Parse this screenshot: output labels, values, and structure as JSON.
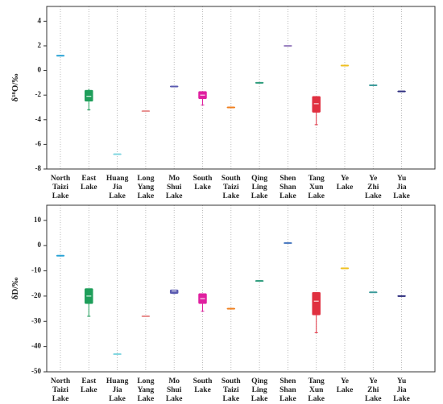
{
  "chart_data": [
    {
      "type": "box",
      "ylabel": "δ¹⁸O/‰",
      "ylim": [
        -8,
        5.2
      ],
      "yticks": [
        -8,
        -6,
        -4,
        -2,
        0,
        2,
        4
      ],
      "grid": true,
      "categories": [
        [
          "North",
          "Taizi",
          "Lake"
        ],
        [
          "East",
          "Lake"
        ],
        [
          "Huang",
          "Jia",
          "Lake"
        ],
        [
          "Long",
          "Yang",
          "Lake"
        ],
        [
          "Mo",
          "Shui",
          "Lake"
        ],
        [
          "South",
          "Lake"
        ],
        [
          "South",
          "Taizi",
          "Lake"
        ],
        [
          "Qing",
          "Ling",
          "Lake"
        ],
        [
          "Shen",
          "Shan",
          "Lake"
        ],
        [
          "Tang",
          "Xun",
          "Lake"
        ],
        [
          "Ye",
          "Lake"
        ],
        [
          "Ye",
          "Zhi",
          "Lake"
        ],
        [
          "Yu",
          "Jia",
          "Lake"
        ]
      ],
      "colors": [
        "#29a3d6",
        "#1e9e5a",
        "#7fd6e0",
        "#e88f8f",
        "#5a5ab0",
        "#e020a0",
        "#f08020",
        "#2a9a7a",
        "#9a80c0",
        "#e03040",
        "#f0c020",
        "#3a9a9a",
        "#303080"
      ],
      "boxes": [
        {
          "min": 1.2,
          "q1": 1.2,
          "median": 1.2,
          "q3": 1.2,
          "max": 1.2
        },
        {
          "min": -3.2,
          "q1": -2.5,
          "median": -2.1,
          "q3": -1.6,
          "max": -1.5
        },
        {
          "min": -6.8,
          "q1": -6.8,
          "median": -6.8,
          "q3": -6.8,
          "max": -6.8
        },
        {
          "min": -3.3,
          "q1": -3.3,
          "median": -3.3,
          "q3": -3.3,
          "max": -3.3
        },
        {
          "min": -1.3,
          "q1": -1.3,
          "median": -1.3,
          "q3": -1.3,
          "max": -1.3
        },
        {
          "min": -2.8,
          "q1": -2.3,
          "median": -2.0,
          "q3": -1.7,
          "max": -1.7
        },
        {
          "min": -3.0,
          "q1": -3.0,
          "median": -3.0,
          "q3": -3.0,
          "max": -3.0
        },
        {
          "min": -1.0,
          "q1": -1.0,
          "median": -1.0,
          "q3": -1.0,
          "max": -1.0
        },
        {
          "min": 2.0,
          "q1": 2.0,
          "median": 2.0,
          "q3": 2.0,
          "max": 2.0
        },
        {
          "min": -4.4,
          "q1": -3.4,
          "median": -2.7,
          "q3": -2.1,
          "max": -2.1
        },
        {
          "min": 0.4,
          "q1": 0.4,
          "median": 0.4,
          "q3": 0.4,
          "max": 0.4
        },
        {
          "min": -1.2,
          "q1": -1.2,
          "median": -1.2,
          "q3": -1.2,
          "max": -1.2
        },
        {
          "min": -1.7,
          "q1": -1.7,
          "median": -1.7,
          "q3": -1.7,
          "max": -1.7
        }
      ]
    },
    {
      "type": "box",
      "ylabel": "δD/‰",
      "ylim": [
        -50,
        16
      ],
      "yticks": [
        -50,
        -40,
        -30,
        -20,
        -10,
        0,
        10
      ],
      "grid": true,
      "categories": [
        [
          "North",
          "Taizi",
          "Lake"
        ],
        [
          "East",
          "Lake"
        ],
        [
          "Huang",
          "Jia",
          "Lake"
        ],
        [
          "Long",
          "Yang",
          "Lake"
        ],
        [
          "Mo",
          "Shui",
          "Lake"
        ],
        [
          "South",
          "Lake"
        ],
        [
          "South",
          "Taizi",
          "Lake"
        ],
        [
          "Qing",
          "Ling",
          "Lake"
        ],
        [
          "Shen",
          "Shan",
          "Lake"
        ],
        [
          "Tang",
          "Xun",
          "Lake"
        ],
        [
          "Ye",
          "Lake"
        ],
        [
          "Ye",
          "Zhi",
          "Lake"
        ],
        [
          "Yu",
          "Jia",
          "Lake"
        ]
      ],
      "colors": [
        "#29a3d6",
        "#1e9e5a",
        "#7fd6e0",
        "#e88f8f",
        "#5a5ab0",
        "#e020a0",
        "#f08020",
        "#2a9a7a",
        "#4a7ac0",
        "#e03040",
        "#f0c020",
        "#3a9a9a",
        "#303080"
      ],
      "boxes": [
        {
          "min": -4,
          "q1": -4,
          "median": -4,
          "q3": -4,
          "max": -4
        },
        {
          "min": -28,
          "q1": -23,
          "median": -20,
          "q3": -17,
          "max": -17
        },
        {
          "min": -43,
          "q1": -43,
          "median": -43,
          "q3": -43,
          "max": -43
        },
        {
          "min": -28,
          "q1": -28,
          "median": -28,
          "q3": -28,
          "max": -28
        },
        {
          "min": -19,
          "q1": -19,
          "median": -18,
          "q3": -17.5,
          "max": -17.5
        },
        {
          "min": -26,
          "q1": -23,
          "median": -21,
          "q3": -19,
          "max": -19
        },
        {
          "min": -25,
          "q1": -25,
          "median": -25,
          "q3": -25,
          "max": -25
        },
        {
          "min": -14,
          "q1": -14,
          "median": -14,
          "q3": -14,
          "max": -14
        },
        {
          "min": 1,
          "q1": 1,
          "median": 1,
          "q3": 1,
          "max": 1
        },
        {
          "min": -34.5,
          "q1": -27.5,
          "median": -22,
          "q3": -18.5,
          "max": -18.5
        },
        {
          "min": -9,
          "q1": -9,
          "median": -9,
          "q3": -9,
          "max": -9
        },
        {
          "min": -18.5,
          "q1": -18.5,
          "median": -18.5,
          "q3": -18.5,
          "max": -18.5
        },
        {
          "min": -20,
          "q1": -20,
          "median": -20,
          "q3": -20,
          "max": -20
        }
      ]
    }
  ]
}
